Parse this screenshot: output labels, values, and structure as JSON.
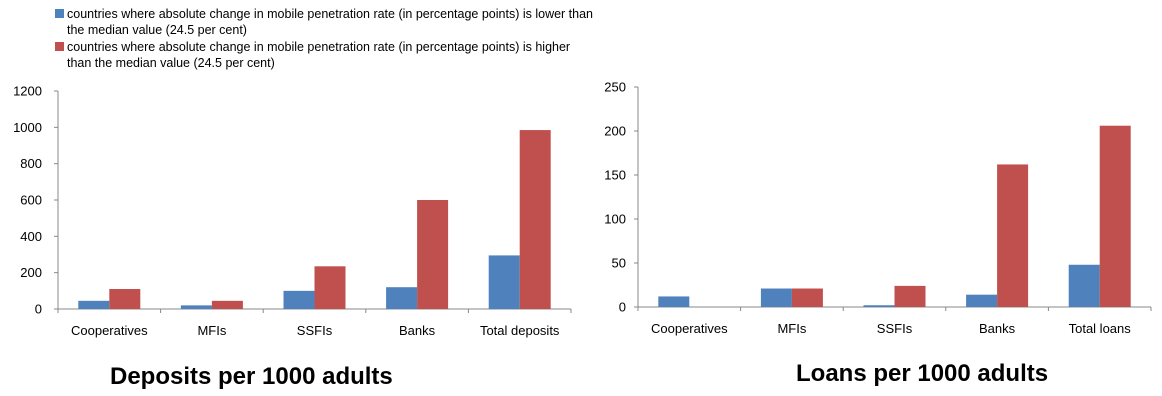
{
  "legend": {
    "items": [
      {
        "color": "#4f81bd",
        "label": "countries where absolute change in mobile penetration rate (in percentage points)  is lower than the median value (24.5 per cent)"
      },
      {
        "color": "#c0504d",
        "label": "countries where absolute change in mobile penetration rate (in percentage points)  is higher than the median value (24.5 per cent)"
      }
    ]
  },
  "colors": {
    "low_series": "#4f81bd",
    "high_series": "#c0504d",
    "axis": "#888888"
  },
  "chart_data": [
    {
      "type": "bar",
      "title": "Deposits per 1000 adults",
      "categories": [
        "Cooperatives",
        "MFIs",
        "SSFIs",
        "Banks",
        "Total deposits"
      ],
      "series": [
        {
          "values": [
            45,
            20,
            100,
            120,
            295
          ]
        },
        {
          "values": [
            110,
            45,
            235,
            600,
            985
          ]
        }
      ],
      "ylim": [
        0,
        1200
      ],
      "yticks": [
        0,
        200,
        400,
        600,
        800,
        1000,
        1200
      ],
      "grid": false,
      "legend": "top-left"
    },
    {
      "type": "bar",
      "title": "Loans per 1000 adults",
      "categories": [
        "Cooperatives",
        "MFIs",
        "SSFIs",
        "Banks",
        "Total loans"
      ],
      "series": [
        {
          "values": [
            12,
            21,
            2,
            14,
            48
          ]
        },
        {
          "values": [
            0,
            21,
            24,
            162,
            206
          ]
        }
      ],
      "ylim": [
        0,
        250
      ],
      "yticks": [
        0,
        50,
        100,
        150,
        200,
        250
      ],
      "grid": false,
      "legend": "none"
    }
  ]
}
